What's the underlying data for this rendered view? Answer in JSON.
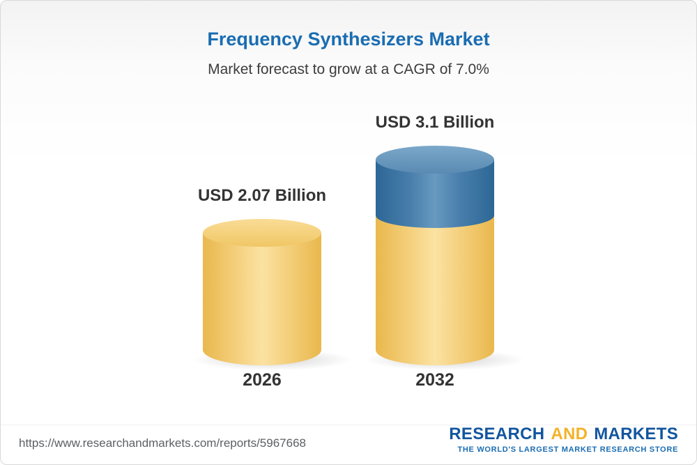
{
  "chart_data": {
    "type": "bar",
    "variant": "3d-cylinder",
    "title": "Frequency Synthesizers Market",
    "subtitle": "Market forecast to grow at a CAGR of 7.0%",
    "cagr_percent": 7.0,
    "unit": "USD Billion",
    "categories": [
      "2026",
      "2032"
    ],
    "values": [
      2.07,
      3.1
    ],
    "value_labels": [
      "USD 2.07 Billion",
      "USD 3.1 Billion"
    ],
    "legend": "none",
    "grid": false,
    "colors": {
      "title": "#1a6db2",
      "base_segment": "#f3cc72",
      "growth_segment": "#477dab",
      "label_text": "#333333"
    }
  },
  "footer": {
    "url": "https://www.researchandmarkets.com/reports/5967668",
    "logo": {
      "word1": "RESEARCH",
      "word2": "AND",
      "word3": "MARKETS",
      "tagline": "THE WORLD'S LARGEST MARKET RESEARCH STORE"
    }
  }
}
